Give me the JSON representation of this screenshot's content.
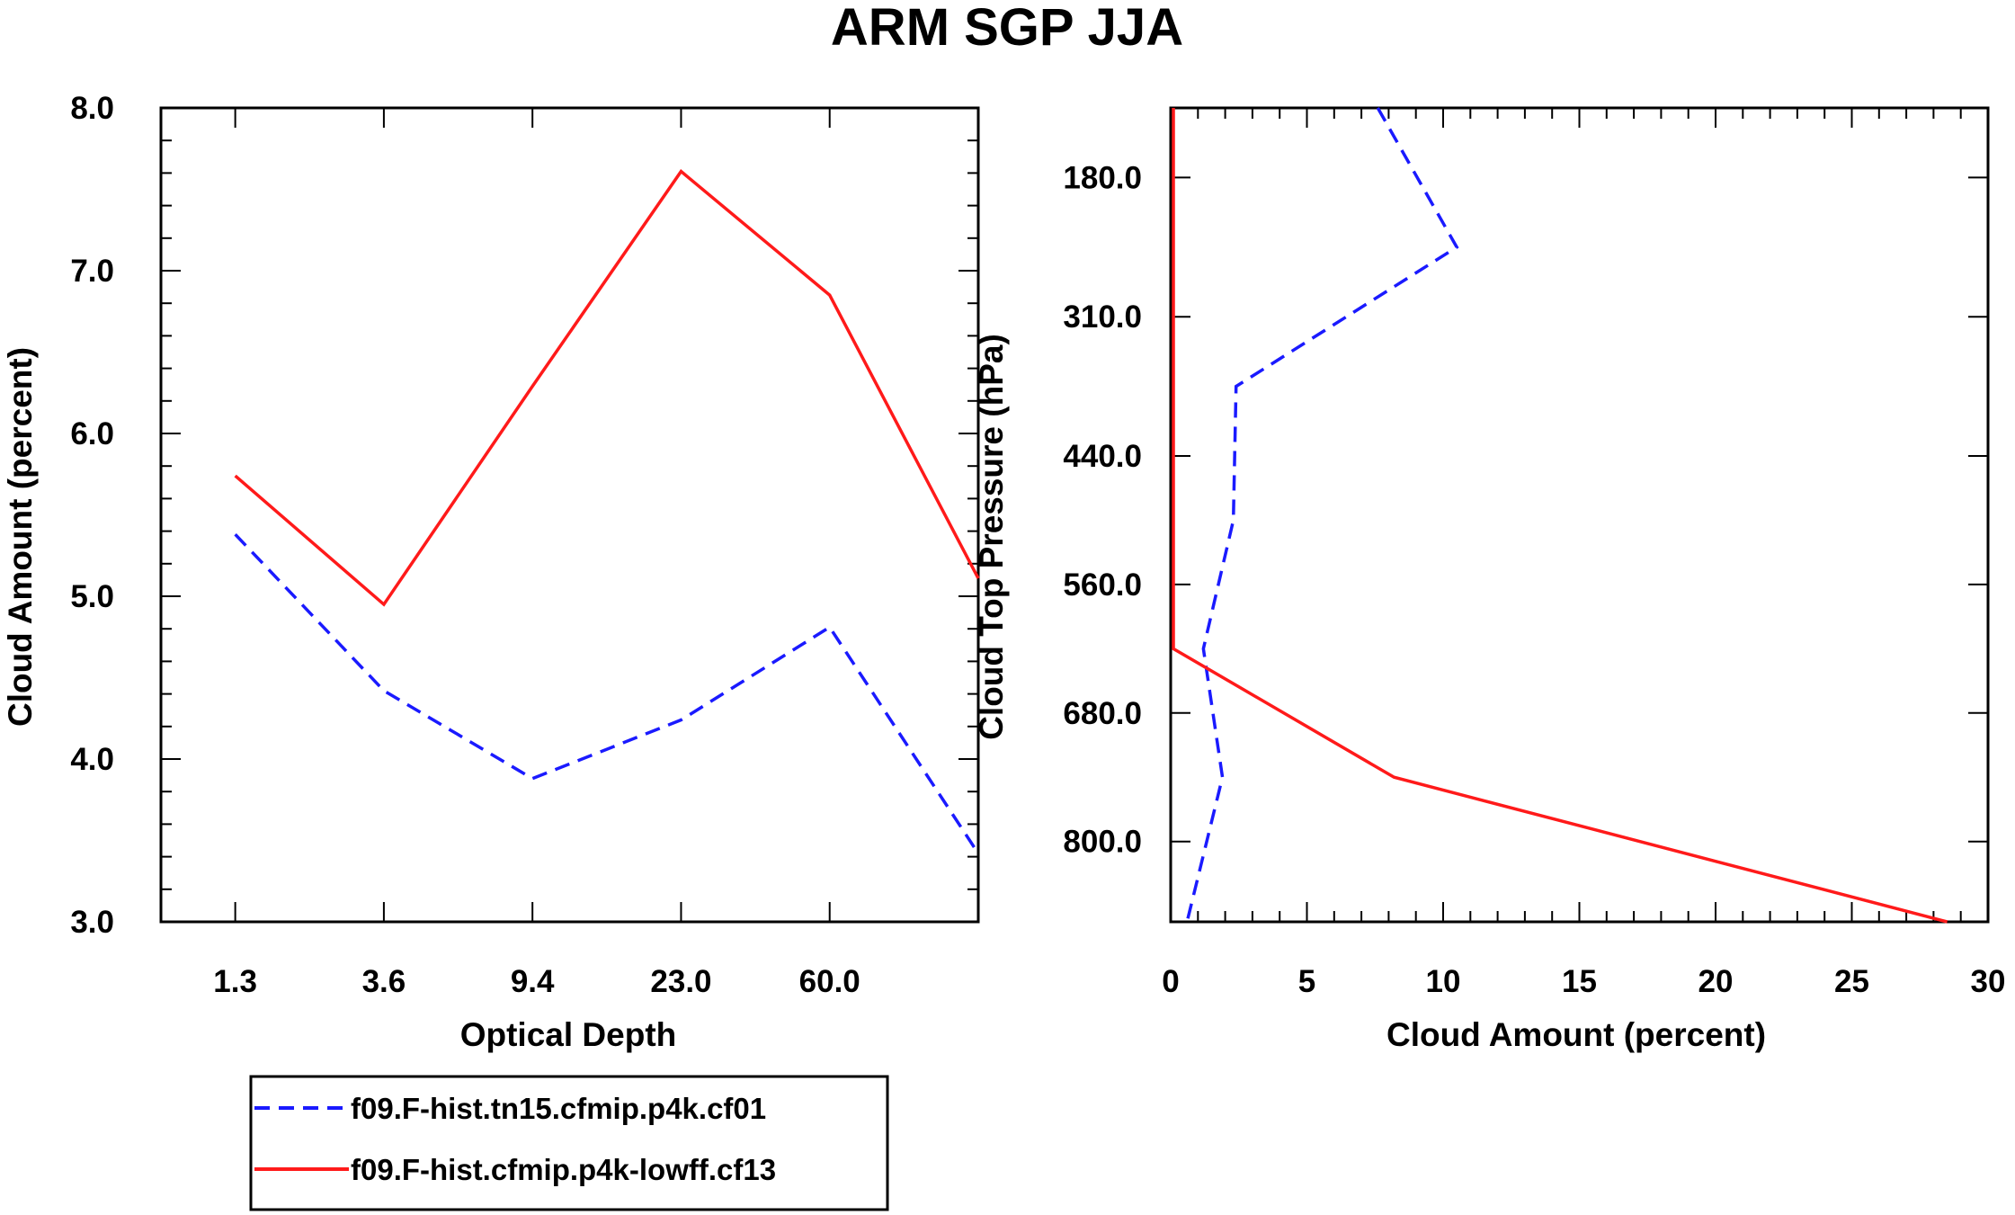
{
  "title": "ARM SGP JJA",
  "colors": {
    "series1": "#1a1aff",
    "series2": "#ff1a1a",
    "axis": "#000000"
  },
  "legend": {
    "entries": [
      {
        "label": "f09.F-hist.tn15.cfmip.p4k.cf01",
        "style": "dashed",
        "color": "#1a1aff"
      },
      {
        "label": "f09.F-hist.cfmip.p4k-lowff.cf13",
        "style": "solid",
        "color": "#ff1a1a"
      }
    ]
  },
  "chart_data": [
    {
      "type": "line",
      "title": "",
      "xlabel": "Optical Depth",
      "ylabel": "Cloud Amount (percent)",
      "x_index": [
        0,
        1,
        2,
        3,
        4,
        5
      ],
      "xlim": [
        -0.5,
        5.0
      ],
      "xtick_positions": [
        0,
        1,
        2,
        3,
        4
      ],
      "xtick_labels": [
        "1.3",
        "3.6",
        "9.4",
        "23.0",
        "60.0"
      ],
      "ylim": [
        3.0,
        8.0
      ],
      "ytick_values": [
        3.0,
        4.0,
        5.0,
        6.0,
        7.0,
        8.0
      ],
      "ytick_labels": [
        "3.0",
        "4.0",
        "5.0",
        "6.0",
        "7.0",
        "8.0"
      ],
      "series": [
        {
          "name": "f09.F-hist.tn15.cfmip.p4k.cf01",
          "values": [
            5.38,
            4.42,
            3.88,
            4.24,
            4.81,
            3.42
          ]
        },
        {
          "name": "f09.F-hist.cfmip.p4k-lowff.cf13",
          "values": [
            5.74,
            4.95,
            6.29,
            7.61,
            6.85,
            5.11
          ]
        }
      ]
    },
    {
      "type": "line",
      "title": "",
      "xlabel": "Cloud Amount (percent)",
      "ylabel": "Cloud Top Pressure (hPa)",
      "xlim": [
        0,
        30
      ],
      "xtick_values": [
        0,
        5,
        10,
        15,
        20,
        25,
        30
      ],
      "xtick_labels": [
        "0",
        "5",
        "10",
        "15",
        "20",
        "25",
        "30"
      ],
      "ylim": [
        875,
        115
      ],
      "y_inverted": true,
      "ytick_values": [
        180,
        310,
        440,
        560,
        680,
        800
      ],
      "ytick_labels": [
        "180.0",
        "310.0",
        "440.0",
        "560.0",
        "680.0",
        "800.0"
      ],
      "y_pressure": [
        115,
        245,
        375,
        500,
        620,
        740,
        875
      ],
      "series": [
        {
          "name": "f09.F-hist.tn15.cfmip.p4k.cf01",
          "values": [
            7.6,
            10.5,
            2.4,
            2.3,
            1.2,
            1.9,
            0.6
          ]
        },
        {
          "name": "f09.F-hist.cfmip.p4k-lowff.cf13",
          "values": [
            0.1,
            0.1,
            0.1,
            0.1,
            0.1,
            8.2,
            28.5
          ]
        }
      ]
    }
  ]
}
